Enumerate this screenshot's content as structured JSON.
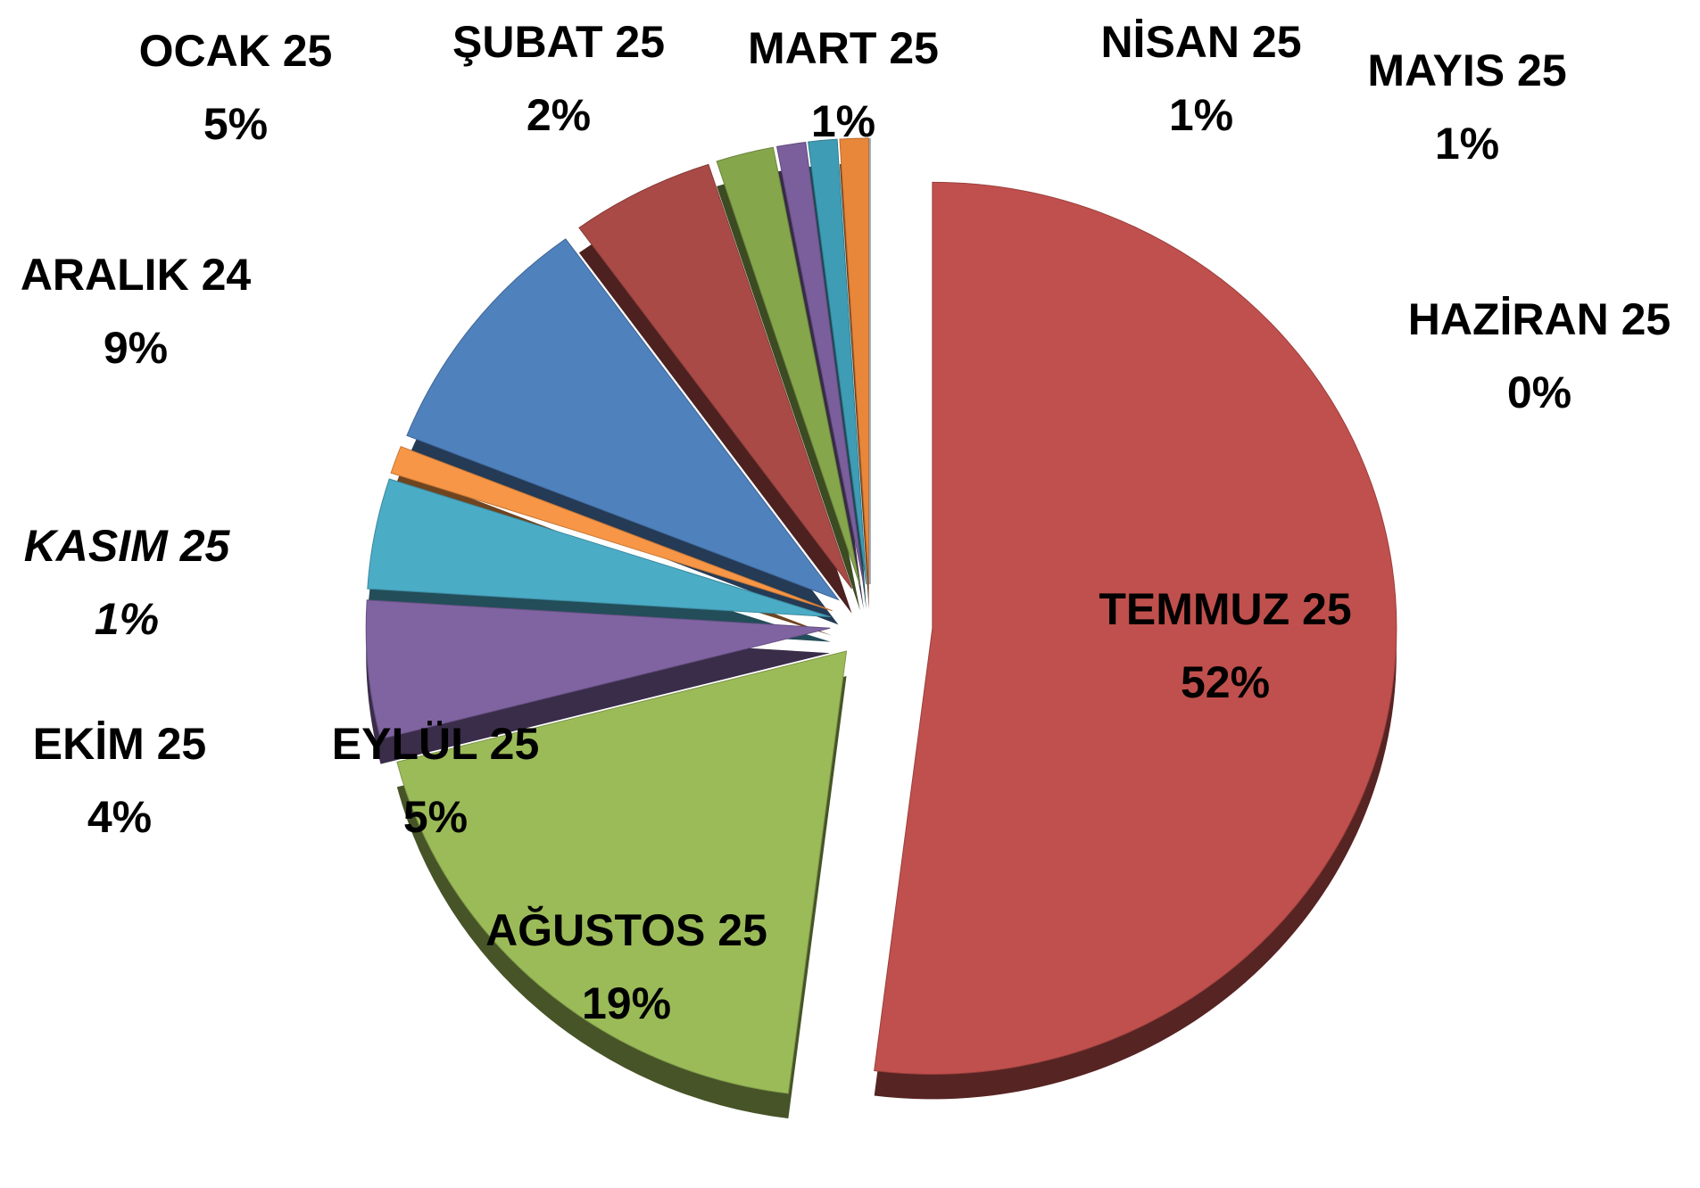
{
  "chart_data": {
    "type": "pie",
    "categories": [
      "TEMMUZ 25",
      "AĞUSTOS 25",
      "EYLÜL 25",
      "EKİM 25",
      "KASIM 25",
      "ARALIK 24",
      "OCAK 25",
      "ŞUBAT 25",
      "MART 25",
      "NİSAN 25",
      "MAYIS 25",
      "HAZİRAN 25"
    ],
    "values": [
      52,
      19,
      5,
      4,
      1,
      9,
      5,
      2,
      1,
      1,
      1,
      0
    ],
    "value_labels": [
      "52%",
      "19%",
      "5%",
      "4%",
      "1%",
      "9%",
      "5%",
      "2%",
      "1%",
      "1%",
      "1%",
      "0%"
    ],
    "colors": [
      "#c0504d",
      "#9bbb59",
      "#8064a2",
      "#4bacc6",
      "#f79646",
      "#4f81bd",
      "#a94a46",
      "#86a64c",
      "#7a5f9c",
      "#3f9cb5",
      "#e8873a",
      "#4f81bd"
    ],
    "highlight": {
      "index": 4,
      "color": "#ff0000",
      "font_style": "italic"
    }
  }
}
